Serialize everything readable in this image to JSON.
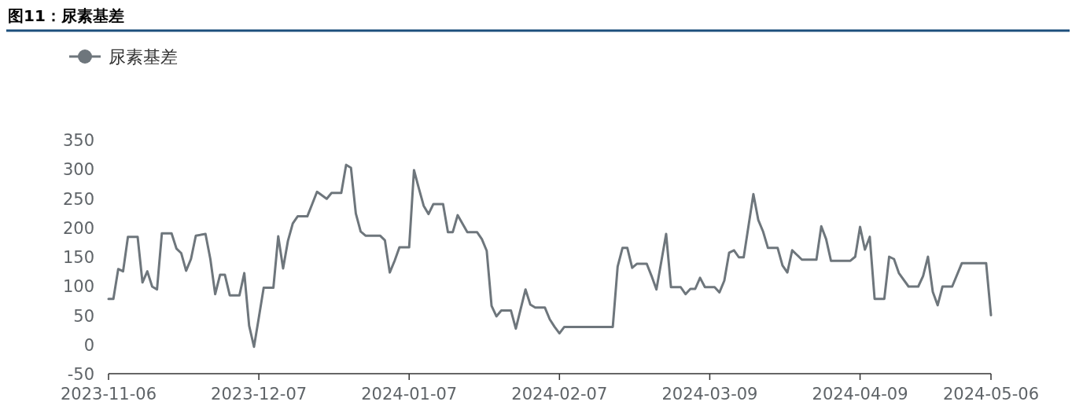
{
  "chart_data": {
    "type": "line",
    "title": "图11：尿素基差",
    "legend": "top left",
    "grid": false,
    "xlim": [
      "2023-11-06",
      "2024-05-06"
    ],
    "xticks": [
      "2023-11-06",
      "2023-12-07",
      "2024-01-07",
      "2024-02-07",
      "2024-03-09",
      "2024-04-09",
      "2024-05-06"
    ],
    "ylim": [
      -50,
      350
    ],
    "yticks": [
      -50,
      0,
      50,
      100,
      150,
      200,
      250,
      300,
      350
    ],
    "x": [
      "2023-11-06",
      "2023-11-07",
      "2023-11-08",
      "2023-11-09",
      "2023-11-10",
      "2023-11-12",
      "2023-11-13",
      "2023-11-14",
      "2023-11-15",
      "2023-11-16",
      "2023-11-17",
      "2023-11-19",
      "2023-11-20",
      "2023-11-21",
      "2023-11-22",
      "2023-11-23",
      "2023-11-24",
      "2023-11-26",
      "2023-11-27",
      "2023-11-28",
      "2023-11-29",
      "2023-11-30",
      "2023-12-01",
      "2023-12-03",
      "2023-12-04",
      "2023-12-05",
      "2023-12-06",
      "2023-12-07",
      "2023-12-08",
      "2023-12-10",
      "2023-12-11",
      "2023-12-12",
      "2023-12-13",
      "2023-12-14",
      "2023-12-15",
      "2023-12-17",
      "2023-12-18",
      "2023-12-19",
      "2023-12-21",
      "2023-12-22",
      "2023-12-24",
      "2023-12-25",
      "2023-12-26",
      "2023-12-27",
      "2023-12-28",
      "2023-12-29",
      "2024-01-01",
      "2024-01-02",
      "2024-01-03",
      "2024-01-04",
      "2024-01-05",
      "2024-01-07",
      "2024-01-08",
      "2024-01-09",
      "2024-01-10",
      "2024-01-11",
      "2024-01-12",
      "2024-01-14",
      "2024-01-15",
      "2024-01-16",
      "2024-01-17",
      "2024-01-19",
      "2024-01-21",
      "2024-01-22",
      "2024-01-23",
      "2024-01-24",
      "2024-01-25",
      "2024-01-26",
      "2024-01-28",
      "2024-01-29",
      "2024-01-31",
      "2024-02-01",
      "2024-02-02",
      "2024-02-04",
      "2024-02-05",
      "2024-02-06",
      "2024-02-07",
      "2024-02-08",
      "2024-02-18",
      "2024-02-19",
      "2024-02-20",
      "2024-02-21",
      "2024-02-22",
      "2024-02-23",
      "2024-02-25",
      "2024-02-26",
      "2024-02-27",
      "2024-02-29",
      "2024-03-01",
      "2024-03-03",
      "2024-03-04",
      "2024-03-05",
      "2024-03-06",
      "2024-03-07",
      "2024-03-08",
      "2024-03-10",
      "2024-03-11",
      "2024-03-12",
      "2024-03-13",
      "2024-03-14",
      "2024-03-15",
      "2024-03-16",
      "2024-03-18",
      "2024-03-19",
      "2024-03-20",
      "2024-03-21",
      "2024-03-23",
      "2024-03-24",
      "2024-03-25",
      "2024-03-26",
      "2024-03-27",
      "2024-03-28",
      "2024-03-31",
      "2024-04-01",
      "2024-04-02",
      "2024-04-03",
      "2024-04-07",
      "2024-04-08",
      "2024-04-09",
      "2024-04-10",
      "2024-04-11",
      "2024-04-12",
      "2024-04-14",
      "2024-04-15",
      "2024-04-16",
      "2024-04-17",
      "2024-04-19",
      "2024-04-21",
      "2024-04-22",
      "2024-04-23",
      "2024-04-24",
      "2024-04-25",
      "2024-04-26",
      "2024-04-28",
      "2024-04-30",
      "2024-05-05",
      "2024-05-06"
    ],
    "series": [
      {
        "name": "尿素基差",
        "color": "#6e767c",
        "values": [
          78,
          78,
          129,
          125,
          184,
          184,
          106,
          125,
          99,
          94,
          190,
          190,
          164,
          156,
          126,
          146,
          186,
          189,
          146,
          86,
          119,
          119,
          84,
          84,
          122,
          32,
          -4,
          46,
          97,
          97,
          185,
          130,
          177,
          207,
          219,
          219,
          240,
          261,
          249,
          259,
          259,
          307,
          302,
          224,
          193,
          186,
          186,
          178,
          123,
          143,
          166,
          166,
          298,
          267,
          237,
          223,
          240,
          240,
          192,
          192,
          221,
          192,
          192,
          180,
          160,
          66,
          48,
          58,
          58,
          27,
          94,
          68,
          63,
          63,
          43,
          30,
          19,
          30,
          30,
          133,
          165,
          165,
          131,
          138,
          138,
          117,
          94,
          189,
          98,
          98,
          86,
          95,
          95,
          114,
          98,
          98,
          89,
          109,
          157,
          161,
          149,
          149,
          257,
          213,
          193,
          165,
          165,
          135,
          123,
          161,
          153,
          145,
          145,
          202,
          180,
          143,
          143,
          150,
          201,
          162,
          184,
          78,
          78,
          150,
          146,
          122,
          99,
          99,
          117,
          150,
          90,
          67,
          99,
          99,
          139,
          139,
          50
        ]
      }
    ]
  }
}
